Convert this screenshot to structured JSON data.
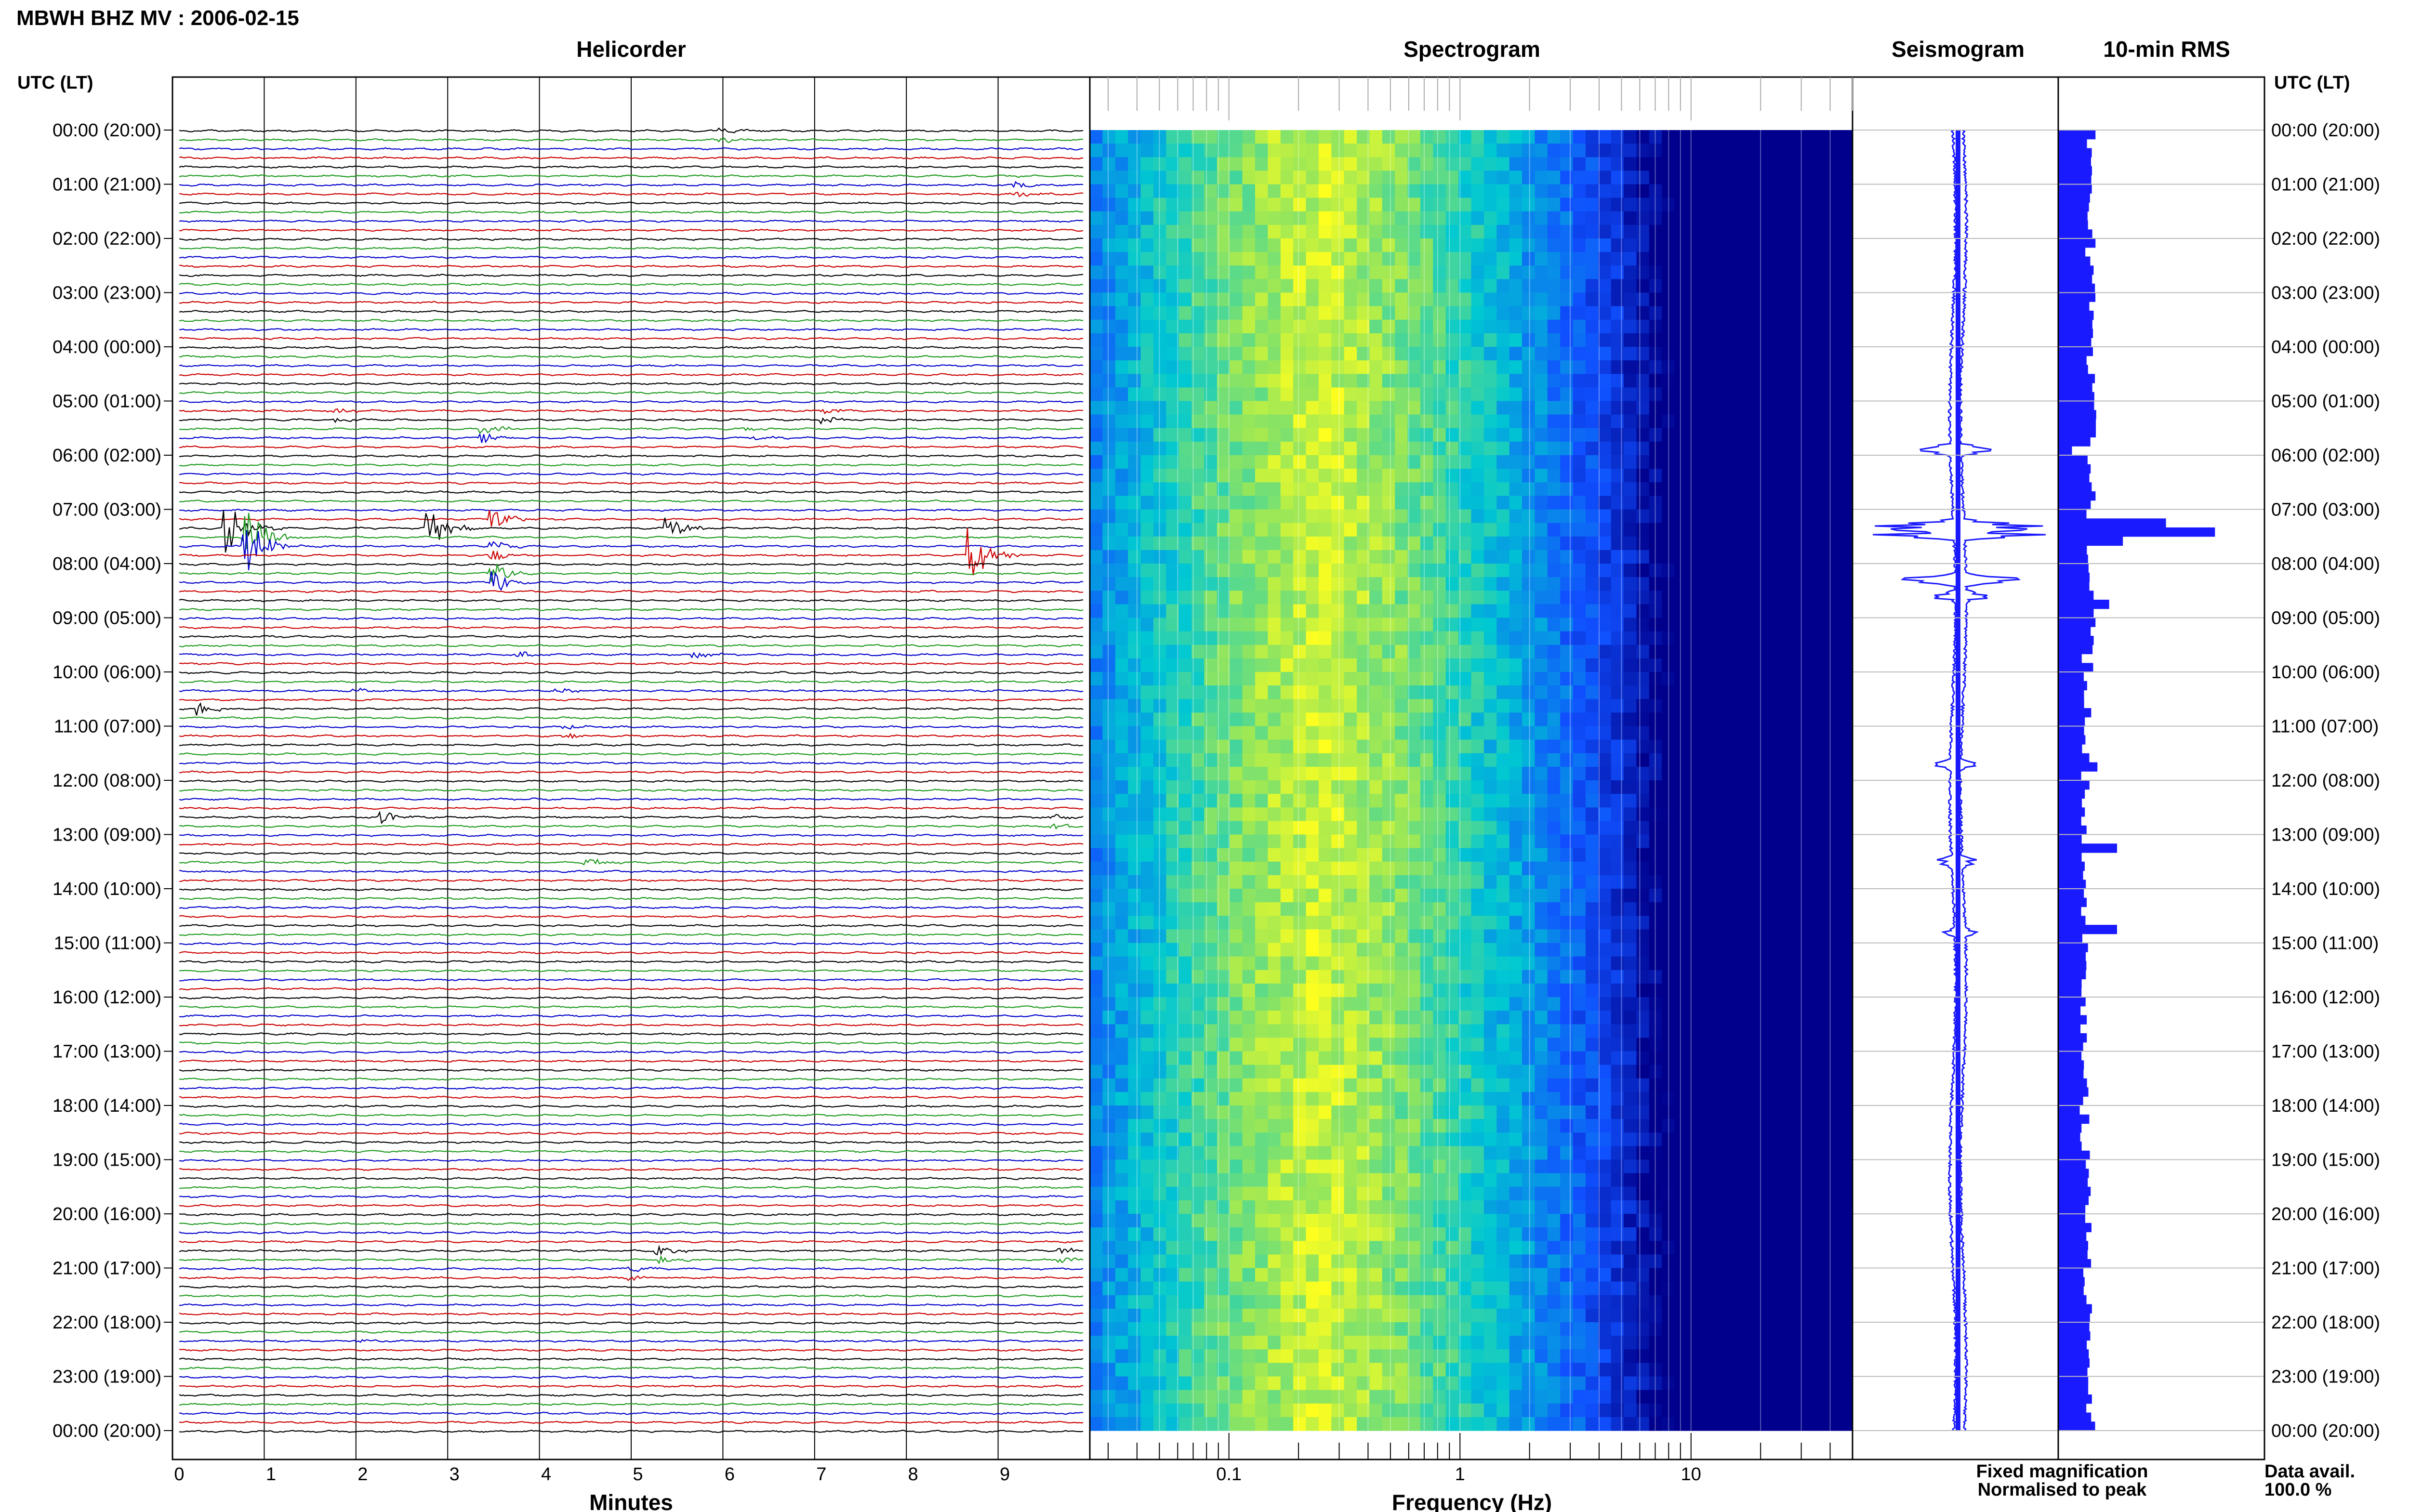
{
  "header": {
    "title": "MBWH BHZ MV : 2006-02-15"
  },
  "left_axis": {
    "label": "UTC (LT)"
  },
  "right_axis": {
    "label": "UTC (LT)"
  },
  "time_labels": [
    "00:00 (20:00)",
    "01:00 (21:00)",
    "02:00 (22:00)",
    "03:00 (23:00)",
    "04:00 (00:00)",
    "05:00 (01:00)",
    "06:00 (02:00)",
    "07:00 (03:00)",
    "08:00 (04:00)",
    "09:00 (05:00)",
    "10:00 (06:00)",
    "11:00 (07:00)",
    "12:00 (08:00)",
    "13:00 (09:00)",
    "14:00 (10:00)",
    "15:00 (11:00)",
    "16:00 (12:00)",
    "17:00 (13:00)",
    "18:00 (14:00)",
    "19:00 (15:00)",
    "20:00 (16:00)",
    "21:00 (17:00)",
    "22:00 (18:00)",
    "23:00 (19:00)",
    "00:00 (20:00)"
  ],
  "panels": {
    "helicorder": {
      "title": "Helicorder",
      "xlabel": "Minutes"
    },
    "spectrogram": {
      "title": "Spectrogram",
      "xlabel": "Frequency (Hz)"
    },
    "seismogram": {
      "title": "Seismogram"
    },
    "rms": {
      "title": "10-min RMS"
    }
  },
  "legend": {
    "fixed": "Fixed magnification",
    "fixed_color": "#1a1aff",
    "normalised": "Normalised to peak",
    "normalised_color": "#ff1a1a"
  },
  "data_avail": {
    "label": "Data avail.",
    "value": "100.0 %"
  },
  "colors": {
    "trace_cycle": [
      "#000000",
      "#1f9a1f",
      "#0000cc",
      "#cc0000"
    ],
    "seismogram": "#1a1aff",
    "rms": "#1a1aff",
    "spectrogram_scale": [
      "#00008b",
      "#1060ff",
      "#00d0d0",
      "#ffff20"
    ]
  },
  "chart_data": [
    {
      "type": "line",
      "title": "Helicorder",
      "xlabel": "Minutes",
      "x_ticks": [
        "0",
        "1",
        "2",
        "3",
        "4",
        "5",
        "6",
        "7",
        "8",
        "9"
      ],
      "xlim": [
        0,
        10
      ],
      "hours": 24,
      "rows_per_hour": 6,
      "events": [
        {
          "row": 0.5,
          "minute": 6.0,
          "amp": 0.25
        },
        {
          "row": 6.5,
          "minute": 9.2,
          "amp": 0.3
        },
        {
          "row": 31.5,
          "minute": 1.8,
          "amp": 0.3
        },
        {
          "row": 31.5,
          "minute": 7.1,
          "amp": 0.3
        },
        {
          "row": 33.5,
          "minute": 3.4,
          "amp": 0.5
        },
        {
          "row": 33.5,
          "minute": 6.3,
          "amp": 0.2
        },
        {
          "row": 43,
          "minute": 3.5,
          "amp": 1.0
        },
        {
          "row": 44,
          "minute": 0.6,
          "amp": 3.0
        },
        {
          "row": 44,
          "minute": 2.8,
          "amp": 2.5
        },
        {
          "row": 44,
          "minute": 5.4,
          "amp": 1.2
        },
        {
          "row": 45.5,
          "minute": 0.8,
          "amp": 3.5
        },
        {
          "row": 46.5,
          "minute": 3.5,
          "amp": 0.5
        },
        {
          "row": 47,
          "minute": 8.7,
          "amp": 3.0
        },
        {
          "row": 49.5,
          "minute": 3.5,
          "amp": 1.2
        },
        {
          "row": 58,
          "minute": 3.8,
          "amp": 0.3
        },
        {
          "row": 58,
          "minute": 5.7,
          "amp": 0.4
        },
        {
          "row": 62,
          "minute": 2.0,
          "amp": 0.3
        },
        {
          "row": 62,
          "minute": 4.2,
          "amp": 0.3
        },
        {
          "row": 64,
          "minute": 0.3,
          "amp": 0.7
        },
        {
          "row": 66.5,
          "minute": 4.3,
          "amp": 0.3
        },
        {
          "row": 76,
          "minute": 2.3,
          "amp": 0.7
        },
        {
          "row": 76.5,
          "minute": 9.6,
          "amp": 0.3
        },
        {
          "row": 81,
          "minute": 4.5,
          "amp": 0.8
        },
        {
          "row": 124.5,
          "minute": 5.3,
          "amp": 0.5
        },
        {
          "row": 124.5,
          "minute": 9.7,
          "amp": 0.3
        },
        {
          "row": 126.5,
          "minute": 5.0,
          "amp": 0.3
        },
        {
          "row": 134,
          "minute": 2.0,
          "amp": 0.2
        }
      ]
    },
    {
      "type": "heatmap",
      "title": "Spectrogram",
      "xlabel": "Frequency (Hz)",
      "x_scale": "log",
      "xlim": [
        0.025,
        50
      ],
      "x_ticks": [
        0.1,
        1,
        10
      ],
      "x_tick_labels": [
        "0.1",
        "1",
        "10"
      ],
      "peak_frequency_hz": 0.25,
      "hours": 24
    },
    {
      "type": "line",
      "title": "Seismogram",
      "hours": 24,
      "bursts": [
        {
          "hour": 5.9,
          "amp": 0.4
        },
        {
          "hour": 7.3,
          "amp": 1.0
        },
        {
          "hour": 7.45,
          "amp": 0.9
        },
        {
          "hour": 8.3,
          "amp": 0.8
        },
        {
          "hour": 8.6,
          "amp": 0.3
        },
        {
          "hour": 11.7,
          "amp": 0.2
        },
        {
          "hour": 13.5,
          "amp": 0.25
        },
        {
          "hour": 14.8,
          "amp": 0.15
        }
      ]
    },
    {
      "type": "bar",
      "title": "10-min RMS",
      "hours": 24,
      "bins_per_hour": 6,
      "baseline": 0.2,
      "peaks": [
        {
          "bin": 0,
          "value": 0.19
        },
        {
          "bin": 12,
          "value": 0.19
        },
        {
          "bin": 35,
          "value": 0.07
        },
        {
          "bin": 43,
          "value": 0.55
        },
        {
          "bin": 44,
          "value": 0.8
        },
        {
          "bin": 45,
          "value": 0.33
        },
        {
          "bin": 49,
          "value": 0.16
        },
        {
          "bin": 52,
          "value": 0.26
        },
        {
          "bin": 54,
          "value": 0.19
        },
        {
          "bin": 58,
          "value": 0.12
        },
        {
          "bin": 70,
          "value": 0.2
        },
        {
          "bin": 79,
          "value": 0.3
        },
        {
          "bin": 88,
          "value": 0.3
        }
      ]
    }
  ]
}
